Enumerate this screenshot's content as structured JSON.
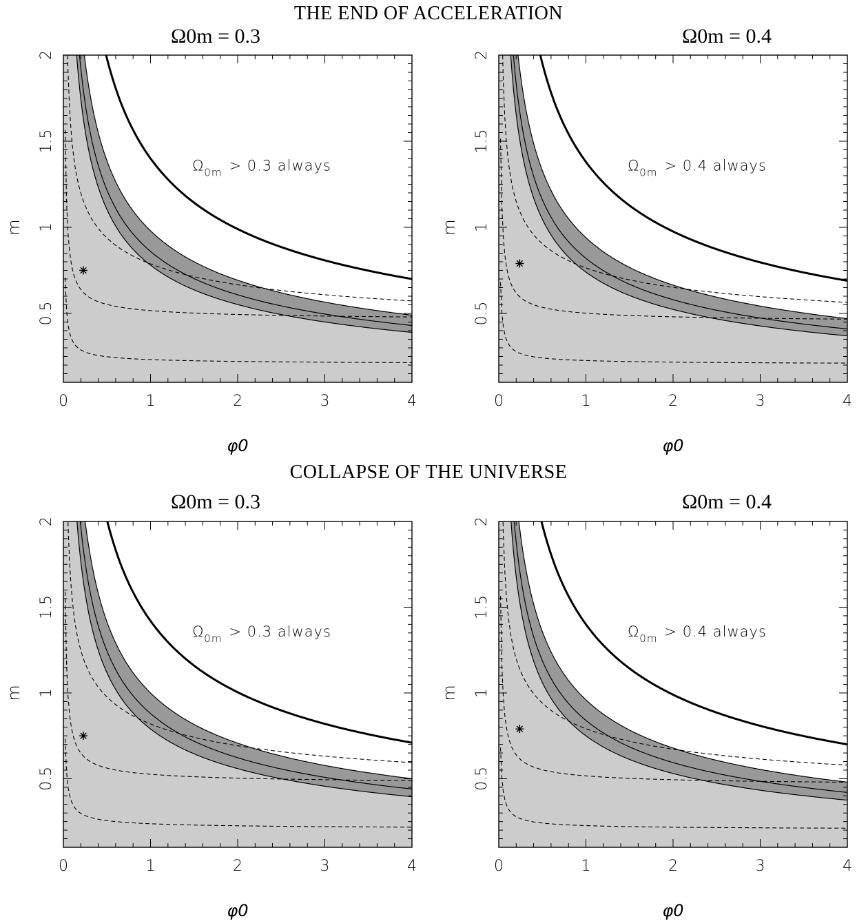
{
  "sections": [
    {
      "title": "THE END OF ACCELERATION"
    },
    {
      "title": "COLLAPSE OF THE UNIVERSE"
    }
  ],
  "colors": {
    "light_region": "#cccccc",
    "dark_band": "#999999",
    "lines": "#000000"
  },
  "chart_data": [
    {
      "type": "area",
      "section": "THE END OF ACCELERATION",
      "title": "Ω0m = 0.3",
      "xlabel": "φ0",
      "ylabel": "m",
      "xlim": [
        0,
        4
      ],
      "ylim": [
        0.1,
        2
      ],
      "xticks": [
        "0",
        "1",
        "2",
        "3",
        "4"
      ],
      "yticks": [
        "0.5",
        "1",
        "1.5",
        "2"
      ],
      "annotation": {
        "symbol": "Ω",
        "sub": "0m",
        "text": "> 0.3 always"
      },
      "star": {
        "x": 0.23,
        "y": 0.75
      },
      "bands": {
        "light_upper_k": 0.98,
        "dark_lower_k": 0.78,
        "dark_upper_k": 0.98,
        "thin_k": 0.86
      },
      "thick_k": 1.4,
      "dashed": [
        {
          "name": "upper",
          "k": 1.2,
          "tail": 0.33
        },
        {
          "name": "middle",
          "k": 0.62,
          "tail": 0.45
        },
        {
          "name": "lower",
          "k": 0.28,
          "tail": 0.2
        }
      ]
    },
    {
      "type": "area",
      "section": "THE END OF ACCELERATION",
      "title": "Ω0m = 0.4",
      "xlabel": "φ0",
      "ylabel": "m",
      "xlim": [
        0,
        4
      ],
      "ylim": [
        0.1,
        2
      ],
      "xticks": [
        "0",
        "1",
        "2",
        "3",
        "4"
      ],
      "yticks": [
        "0.5",
        "1",
        "1.5",
        "2"
      ],
      "annotation": {
        "symbol": "Ω",
        "sub": "0m",
        "text": "> 0.4 always"
      },
      "star": {
        "x": 0.24,
        "y": 0.79
      },
      "bands": {
        "light_upper_k": 0.94,
        "dark_lower_k": 0.74,
        "dark_upper_k": 0.94,
        "thin_k": 0.82
      },
      "thick_k": 1.38,
      "dashed": [
        {
          "name": "upper",
          "k": 1.15,
          "tail": 0.34
        },
        {
          "name": "middle",
          "k": 0.6,
          "tail": 0.44
        },
        {
          "name": "lower",
          "k": 0.27,
          "tail": 0.2
        }
      ]
    },
    {
      "type": "area",
      "section": "COLLAPSE OF THE UNIVERSE",
      "title": "Ω0m = 0.3",
      "xlabel": "φ0",
      "ylabel": "m",
      "xlim": [
        0,
        4
      ],
      "ylim": [
        0.1,
        2
      ],
      "xticks": [
        "0",
        "1",
        "2",
        "3",
        "4"
      ],
      "yticks": [
        "0.5",
        "1",
        "1.5",
        "2"
      ],
      "annotation": {
        "symbol": "Ω",
        "sub": "0m",
        "text": "> 0.3 always"
      },
      "star": {
        "x": 0.23,
        "y": 0.75
      },
      "bands": {
        "light_upper_k": 1.0,
        "dark_lower_k": 0.79,
        "dark_upper_k": 1.0,
        "thin_k": 0.88
      },
      "thick_k": 1.42,
      "dashed": [
        {
          "name": "upper",
          "k": 1.25,
          "tail": 0.34
        },
        {
          "name": "middle",
          "k": 0.63,
          "tail": 0.46
        },
        {
          "name": "lower",
          "k": 0.29,
          "tail": 0.2
        }
      ]
    },
    {
      "type": "area",
      "section": "COLLAPSE OF THE UNIVERSE",
      "title": "Ω0m = 0.4",
      "xlabel": "φ0",
      "ylabel": "m",
      "xlim": [
        0,
        4
      ],
      "ylim": [
        0.1,
        2
      ],
      "xticks": [
        "0",
        "1",
        "2",
        "3",
        "4"
      ],
      "yticks": [
        "0.5",
        "1",
        "1.5",
        "2"
      ],
      "annotation": {
        "symbol": "Ω",
        "sub": "0m",
        "text": "> 0.4 always"
      },
      "star": {
        "x": 0.24,
        "y": 0.79
      },
      "bands": {
        "light_upper_k": 0.96,
        "dark_lower_k": 0.75,
        "dark_upper_k": 0.96,
        "thin_k": 0.84
      },
      "thick_k": 1.4,
      "dashed": [
        {
          "name": "upper",
          "k": 1.2,
          "tail": 0.34
        },
        {
          "name": "middle",
          "k": 0.62,
          "tail": 0.45
        },
        {
          "name": "lower",
          "k": 0.27,
          "tail": 0.2
        }
      ]
    }
  ]
}
